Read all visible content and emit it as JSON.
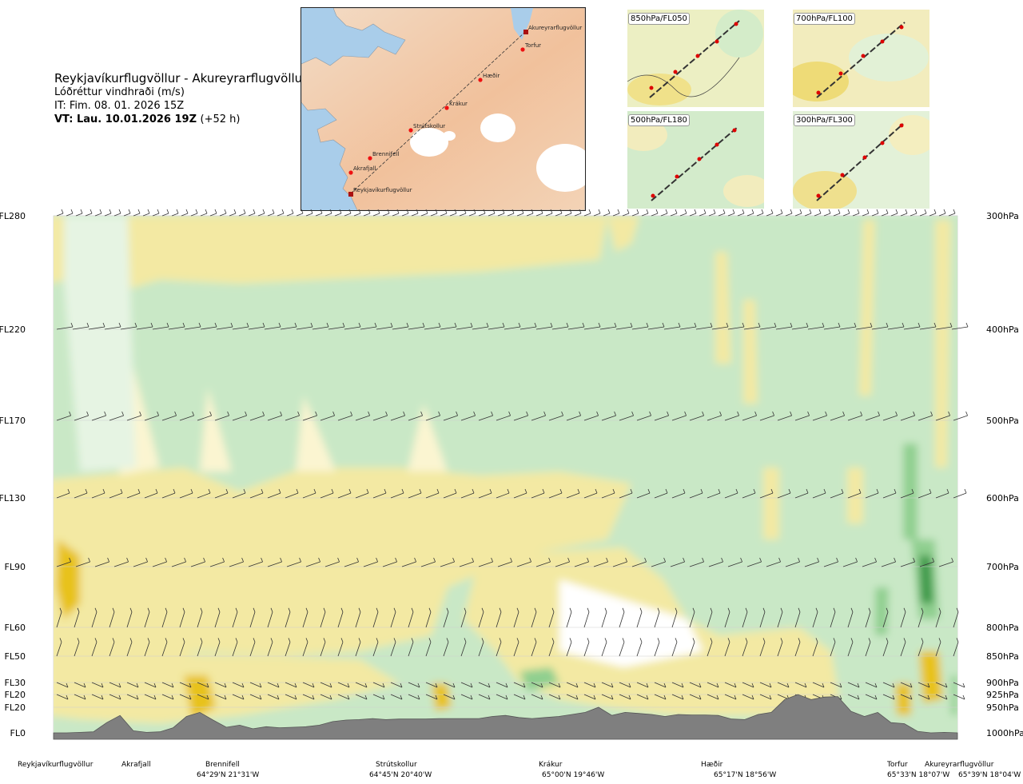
{
  "header": {
    "route": "Reykjavíkurflugvöllur - Akureyrarflugvöllur",
    "product": "Lóðréttur vindhraði (m/s)",
    "issue_time": "IT: Fim. 08. 01. 2026 15Z",
    "valid_time": "VT: Lau. 10.01.2026 19Z",
    "lead_time": "(+52 h)"
  },
  "route_map": {
    "points": [
      "Akureyrarflugvöllur",
      "Torfur",
      "Hæðir",
      "Krákur",
      "Strútskollur",
      "Brennifell",
      "Akrafjall",
      "Reykjavíkurflugvöllur"
    ]
  },
  "level_panels": [
    {
      "label": "850hPa/FL050"
    },
    {
      "label": "700hPa/FL100"
    },
    {
      "label": "500hPa/FL180"
    },
    {
      "label": "300hPa/FL300"
    }
  ],
  "chart_data": {
    "type": "heatmap",
    "title": "Lóðréttur vindhraði (m/s)",
    "flight_levels": [
      "FL280",
      "FL220",
      "FL170",
      "FL130",
      "FL90",
      "FL60",
      "FL50",
      "FL30",
      "FL20",
      "FL20",
      "FL0"
    ],
    "pressure_levels": [
      "300hPa",
      "400hPa",
      "500hPa",
      "600hPa",
      "700hPa",
      "800hPa",
      "850hPa",
      "900hPa",
      "925hPa",
      "950hPa",
      "1000hPa"
    ],
    "pressure_hpa": [
      300,
      400,
      500,
      600,
      700,
      800,
      850,
      900,
      925,
      950,
      1000
    ],
    "route_points": [
      {
        "name": "Reykjavíkurflugvöllur",
        "coord": "",
        "dist": 0.0
      },
      {
        "name": "Akrafjall",
        "coord": "",
        "dist": 0.1
      },
      {
        "name": "Brennifell",
        "coord": "64°29'N 21°31'W",
        "dist": 0.19
      },
      {
        "name": "Strútskollur",
        "coord": "64°45'N 20°40'W",
        "dist": 0.39
      },
      {
        "name": "Krákur",
        "coord": "65°00'N 19°46'W",
        "dist": 0.57
      },
      {
        "name": "Hæðir",
        "coord": "65°17'N 18°56'W",
        "dist": 0.75
      },
      {
        "name": "Torfur",
        "coord": "65°33'N 18°07'W",
        "dist": 0.95
      },
      {
        "name": "Akureyrarflugvöllur",
        "coord": "65°39'N 18°04'W",
        "dist": 1.0
      }
    ],
    "terrain_pressure_hpa": [
      1000,
      1000,
      999,
      998,
      980,
      966,
      996,
      999,
      998,
      990,
      968,
      960,
      975,
      989,
      985,
      992,
      988,
      990,
      989,
      988,
      985,
      978,
      975,
      974,
      972,
      974,
      973,
      973,
      973,
      972,
      972,
      972,
      972,
      968,
      966,
      970,
      972,
      970,
      968,
      964,
      960,
      950,
      966,
      960,
      962,
      964,
      968,
      964,
      965,
      965,
      966,
      973,
      974,
      964,
      960,
      935,
      925,
      935,
      930,
      929,
      958,
      968,
      960,
      980,
      982,
      997,
      1000,
      999,
      1000
    ],
    "colors": {
      "strong_down": "#e8c21a",
      "down": "#f3e9a3",
      "weak_down": "#fbf5d1",
      "neutral": "#ffffff",
      "weak_up": "#e6f4e3",
      "up": "#c9e8c6",
      "strong_up": "#8fcf8f",
      "very_strong_up": "#3c9a4a",
      "terrain": "#7f7f7f"
    }
  }
}
